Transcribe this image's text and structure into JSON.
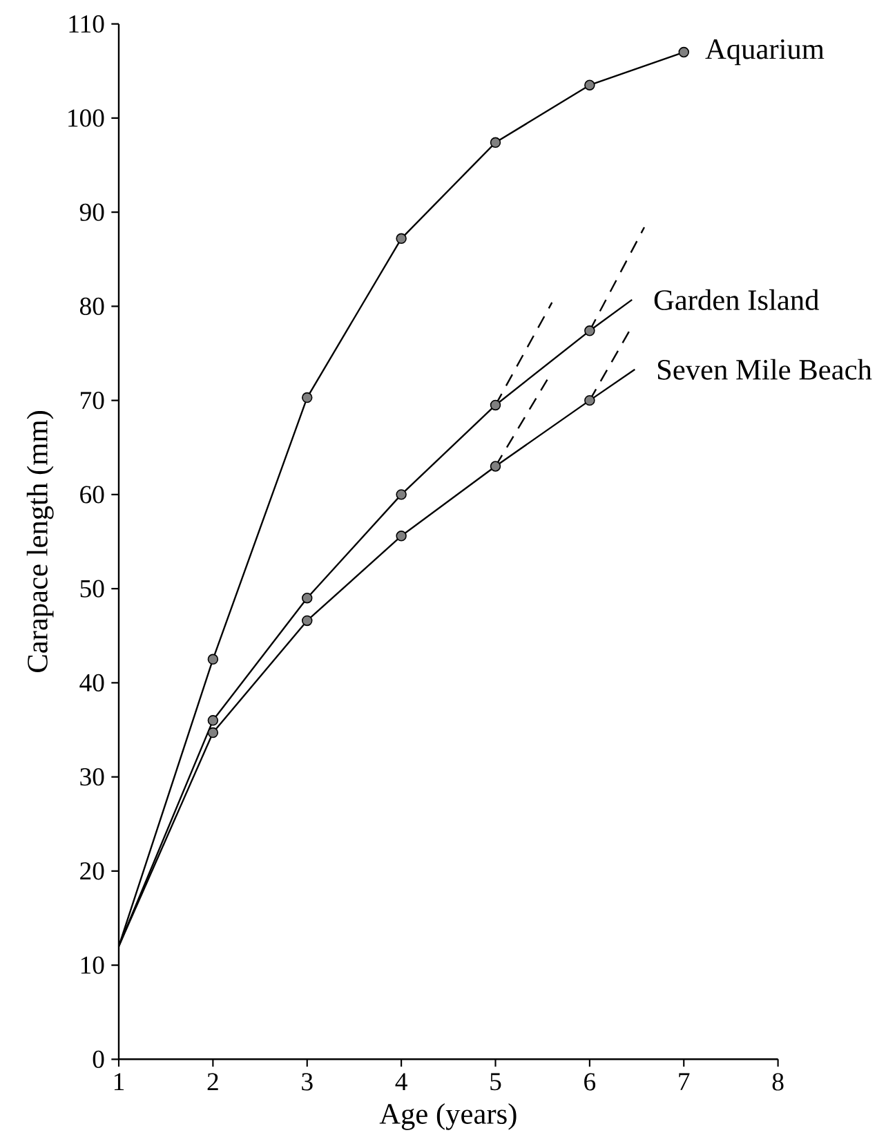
{
  "chart_data": {
    "type": "line",
    "xlabel": "Age (years)",
    "ylabel": "Carapace length (mm)",
    "xlim": [
      1,
      8
    ],
    "ylim": [
      0,
      110
    ],
    "xticks": [
      1,
      2,
      3,
      4,
      5,
      6,
      7,
      8
    ],
    "yticks": [
      0,
      10,
      20,
      30,
      40,
      50,
      60,
      70,
      80,
      90,
      100,
      110
    ],
    "series": [
      {
        "color": "#000000",
        "marker": "circle",
        "x": [
          2,
          3,
          4,
          5,
          6,
          7
        ],
        "values": [
          42.5,
          70.3,
          87.2,
          97.4,
          103.5,
          107
        ]
      },
      {
        "color": "#000000",
        "marker": "circle",
        "x": [
          2,
          3,
          4,
          5,
          6
        ],
        "values": [
          36,
          49,
          60,
          69.5,
          77.4
        ]
      },
      {
        "color": "#000000",
        "marker": "circle",
        "x": [
          2,
          3,
          4,
          5,
          6
        ],
        "values": [
          34.7,
          46.6,
          55.6,
          63,
          70
        ]
      },
      {
        "color": "#000000",
        "marker": "none",
        "x": [
          1,
          2
        ],
        "values": [
          12,
          42.5
        ]
      },
      {
        "color": "#000000",
        "marker": "none",
        "x": [
          1,
          2
        ],
        "values": [
          12,
          36
        ]
      },
      {
        "color": "#000000",
        "marker": "none",
        "x": [
          1,
          2
        ],
        "values": [
          12,
          34.7
        ]
      },
      {
        "color": "#000000",
        "marker": "none",
        "x": [
          6,
          6.45
        ],
        "values": [
          77.4,
          80.7
        ]
      },
      {
        "color": "#000000",
        "marker": "none",
        "x": [
          6,
          6.48
        ],
        "values": [
          70,
          73.3
        ]
      },
      {
        "color": "#000000",
        "marker": "none",
        "line_style": "dashed",
        "x": [
          5,
          5.6
        ],
        "values": [
          69.5,
          80.4
        ]
      },
      {
        "color": "#000000",
        "marker": "none",
        "line_style": "dashed",
        "x": [
          6,
          6.58
        ],
        "values": [
          77.4,
          88.4
        ]
      },
      {
        "color": "#000000",
        "marker": "none",
        "line_style": "dashed",
        "x": [
          5,
          5.55
        ],
        "values": [
          63,
          72.2
        ]
      },
      {
        "color": "#000000",
        "marker": "none",
        "line_style": "dashed",
        "x": [
          6,
          6.44
        ],
        "values": [
          70,
          77.7
        ]
      }
    ],
    "annotations": [
      {
        "text": "Aquarium",
        "x": 7,
        "y": 107
      },
      {
        "text": "Garden Island",
        "x": 6.45,
        "y": 80.7
      },
      {
        "text": "Seven Mile Beach",
        "x": 6.48,
        "y": 73.3
      }
    ]
  }
}
